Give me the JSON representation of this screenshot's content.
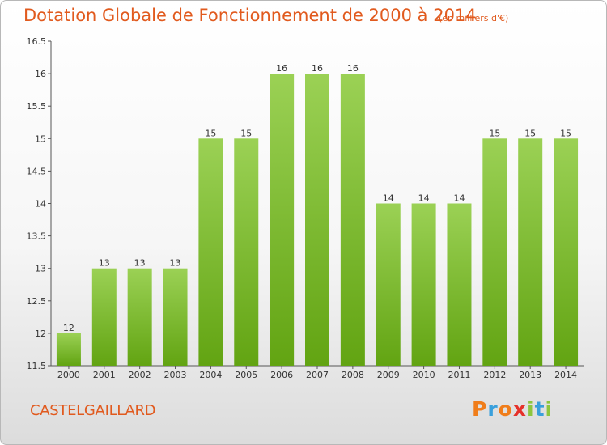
{
  "header": {
    "title": "Dotation Globale de Fonctionnement de 2000 à 2014",
    "unit": "(en milliers d'€)"
  },
  "commune": "CASTELGAILLARD",
  "brand": {
    "letters": [
      "P",
      "r",
      "o",
      "x",
      "i",
      "t",
      "i"
    ],
    "colors": [
      "#f07d1a",
      "#3aa0dc",
      "#f07d1a",
      "#e5312a",
      "#8dc63f",
      "#3aa0dc",
      "#8dc63f"
    ]
  },
  "chart_data": {
    "type": "bar",
    "title": "Dotation Globale de Fonctionnement de 2000 à 2014",
    "subtitle": "(en milliers d'€)",
    "xlabel": "",
    "ylabel": "",
    "categories": [
      "2000",
      "2001",
      "2002",
      "2003",
      "2004",
      "2005",
      "2006",
      "2007",
      "2008",
      "2009",
      "2010",
      "2011",
      "2012",
      "2013",
      "2014"
    ],
    "values": [
      12,
      13,
      13,
      13,
      15,
      15,
      16,
      16,
      16,
      14,
      14,
      14,
      15,
      15,
      15
    ],
    "ylim": [
      11.5,
      16.5
    ],
    "yticks": [
      "11.5",
      "12",
      "12.5",
      "13",
      "13.5",
      "14",
      "14.5",
      "15",
      "15.5",
      "16",
      "16.5"
    ],
    "grid": false,
    "bar_color": "#7cbf2e"
  }
}
